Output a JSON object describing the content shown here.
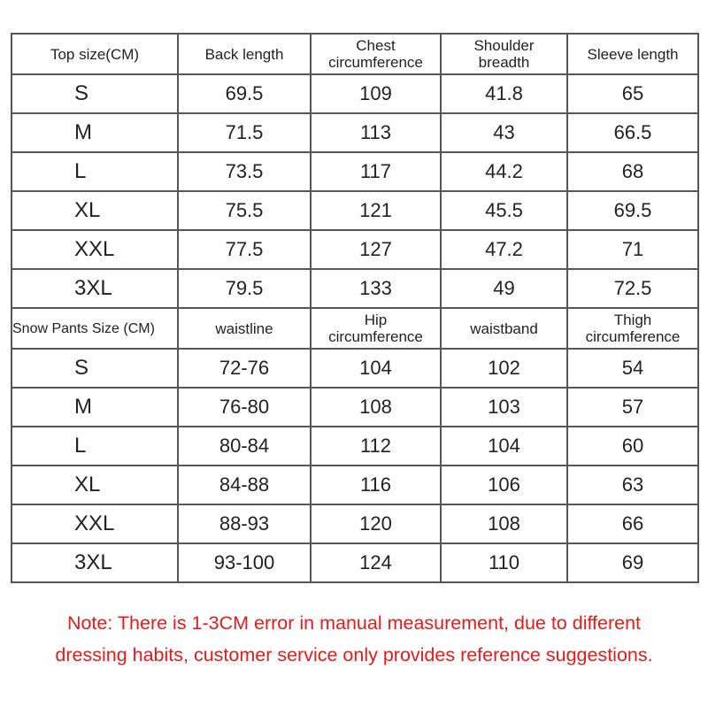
{
  "top_table": {
    "header": [
      "Top size(CM)",
      "Back length",
      [
        "Chest",
        "circumference"
      ],
      [
        "Shoulder",
        "breadth"
      ],
      "Sleeve length"
    ],
    "rows": [
      [
        "S",
        "69.5",
        "109",
        "41.8",
        "65"
      ],
      [
        "M",
        "71.5",
        "113",
        "43",
        "66.5"
      ],
      [
        "L",
        "73.5",
        "117",
        "44.2",
        "68"
      ],
      [
        "XL",
        "75.5",
        "121",
        "45.5",
        "69.5"
      ],
      [
        "XXL",
        "77.5",
        "127",
        "47.2",
        "71"
      ],
      [
        "3XL",
        "79.5",
        "133",
        "49",
        "72.5"
      ]
    ]
  },
  "pants_table": {
    "header": [
      "Snow Pants Size (CM)",
      "waistline",
      [
        "Hip",
        "circumference"
      ],
      "waistband",
      [
        "Thigh",
        "circumference"
      ]
    ],
    "rows": [
      [
        "S",
        "72-76",
        "104",
        "102",
        "54"
      ],
      [
        "M",
        "76-80",
        "108",
        "103",
        "57"
      ],
      [
        "L",
        "80-84",
        "112",
        "104",
        "60"
      ],
      [
        "XL",
        "84-88",
        "116",
        "106",
        "63"
      ],
      [
        "XXL",
        "88-93",
        "120",
        "108",
        "66"
      ],
      [
        "3XL",
        "93-100",
        "124",
        "110",
        "69"
      ]
    ]
  },
  "note": [
    "Note: There is 1-3CM error in manual measurement, due to  different",
    "dressing habits, customer service only provides reference suggestions."
  ]
}
